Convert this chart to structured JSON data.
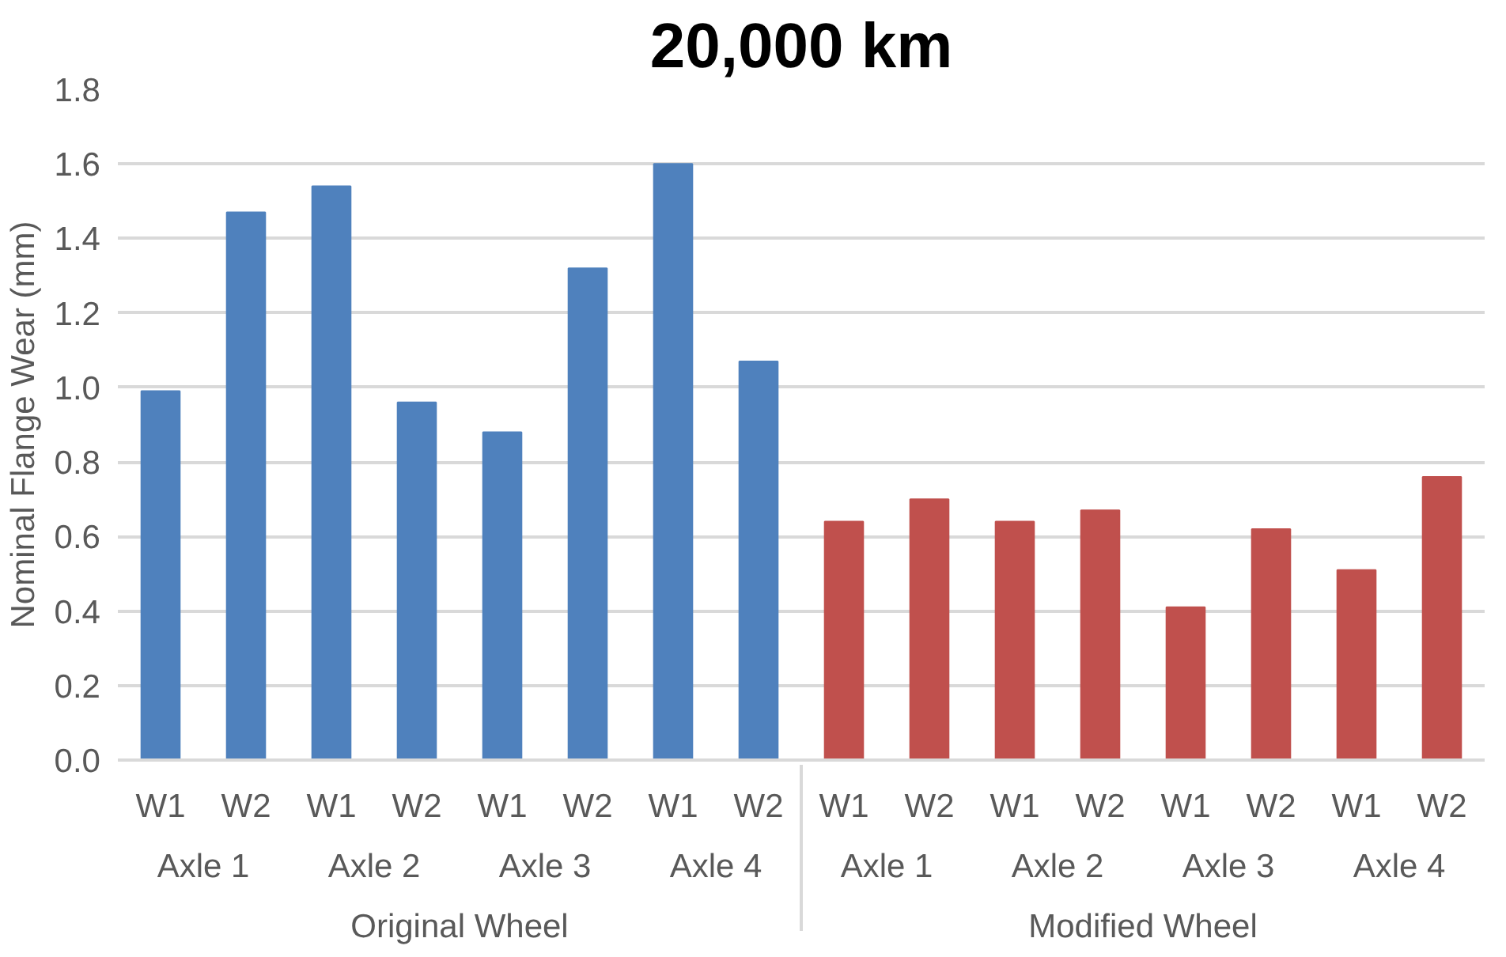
{
  "chart_data": {
    "type": "bar",
    "title": "20,000 km",
    "ylabel": "Nominal Flange Wear (mm)",
    "categories": [
      [
        "Original Wheel",
        "Axle 1",
        "W1"
      ],
      [
        null,
        null,
        "W2"
      ],
      [
        null,
        "Axle 2",
        "W1"
      ],
      [
        null,
        null,
        "W2"
      ],
      [
        null,
        "Axle 3",
        "W1"
      ],
      [
        null,
        null,
        "W2"
      ],
      [
        null,
        "Axle 4",
        "W1"
      ],
      [
        null,
        null,
        "W2"
      ],
      [
        "Modified Wheel",
        "Axle 1",
        "W1"
      ],
      [
        null,
        null,
        "W2"
      ],
      [
        null,
        "Axle 2",
        "W1"
      ],
      [
        null,
        null,
        "W2"
      ],
      [
        null,
        "Axle 3",
        "W1"
      ],
      [
        null,
        null,
        "W2"
      ],
      [
        null,
        "Axle 4",
        "W1"
      ],
      [
        null,
        null,
        "W2"
      ]
    ],
    "values": [
      0.99,
      1.47,
      1.54,
      0.96,
      0.88,
      1.32,
      1.6,
      1.07,
      0.64,
      0.7,
      0.64,
      0.67,
      0.41,
      0.62,
      0.51,
      0.76
    ],
    "colors": [
      "#4f81bd",
      "#4f81bd",
      "#4f81bd",
      "#4f81bd",
      "#4f81bd",
      "#4f81bd",
      "#4f81bd",
      "#4f81bd",
      "#c0504d",
      "#c0504d",
      "#c0504d",
      "#c0504d",
      "#c0504d",
      "#c0504d",
      "#c0504d",
      "#c0504d"
    ],
    "ylim": [
      0,
      1.8
    ],
    "yticks": [
      {
        "value": 0,
        "label": "0.0"
      },
      0.2,
      0.4,
      0.6,
      0.8,
      {
        "value": 1,
        "label": "1.0"
      },
      1.2,
      1.4,
      1.6,
      1.8
    ],
    "grid": "y"
  }
}
